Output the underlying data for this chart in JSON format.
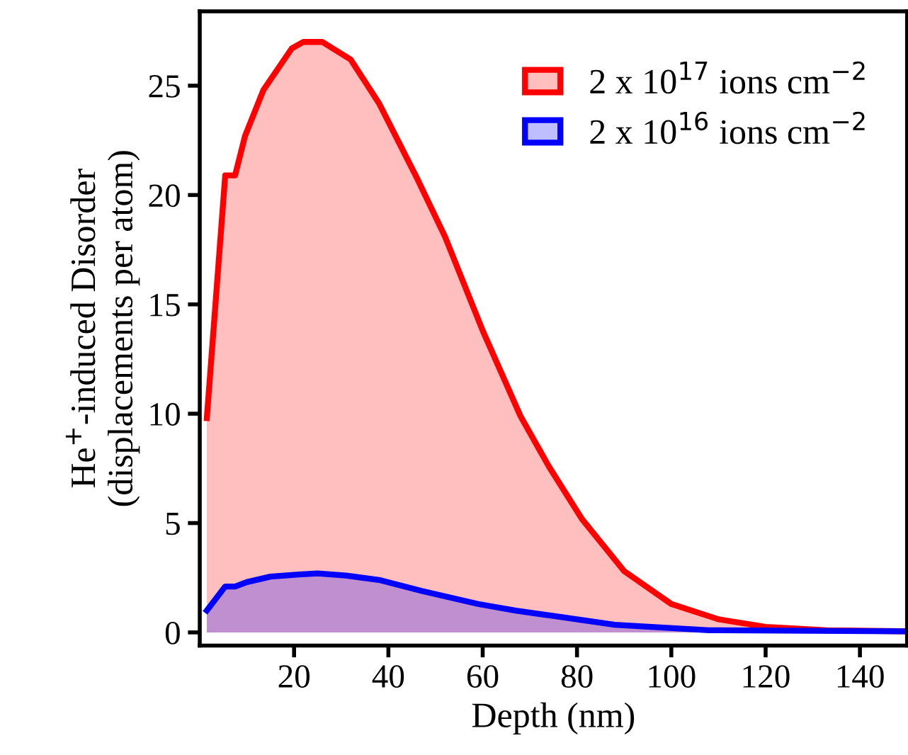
{
  "chart_data": {
    "type": "area",
    "xlabel": "Depth (nm)",
    "ylabel": "He$^{+}$-induced Disorder\n(displacements per atom)",
    "xlim": [
      0,
      150
    ],
    "ylim": [
      -0.6,
      28.4
    ],
    "xticks": [
      20,
      40,
      60,
      80,
      100,
      120,
      140
    ],
    "yticks": [
      0,
      5,
      10,
      15,
      20,
      25
    ],
    "grid": false,
    "legend": "top right",
    "series": [
      {
        "name": "2 x 10$^{17}$ ions cm$^{−2}$",
        "color": "#ff0000",
        "x": [
          1.5,
          5.4,
          7.5,
          9.6,
          13.5,
          19.5,
          22,
          26,
          32,
          38,
          46,
          52,
          60,
          68,
          74,
          81,
          90,
          100,
          110,
          120,
          133,
          150
        ],
        "values": [
          9.8,
          20.9,
          20.9,
          22.7,
          24.8,
          26.7,
          27.0,
          27.0,
          26.2,
          24.2,
          20.8,
          18.1,
          13.8,
          9.9,
          7.6,
          5.2,
          2.8,
          1.3,
          0.6,
          0.25,
          0.1,
          0.05
        ]
      },
      {
        "name": "2 x 10$^{16}$ ions cm$^{−2}$",
        "color": "#0000ff",
        "x": [
          1.5,
          5.4,
          7.5,
          10,
          15,
          21,
          25,
          31,
          38,
          47,
          59,
          67,
          75,
          88,
          108,
          150
        ],
        "values": [
          1.0,
          2.1,
          2.1,
          2.3,
          2.55,
          2.65,
          2.7,
          2.6,
          2.4,
          1.9,
          1.3,
          1.0,
          0.75,
          0.35,
          0.1,
          0.05
        ]
      }
    ]
  }
}
